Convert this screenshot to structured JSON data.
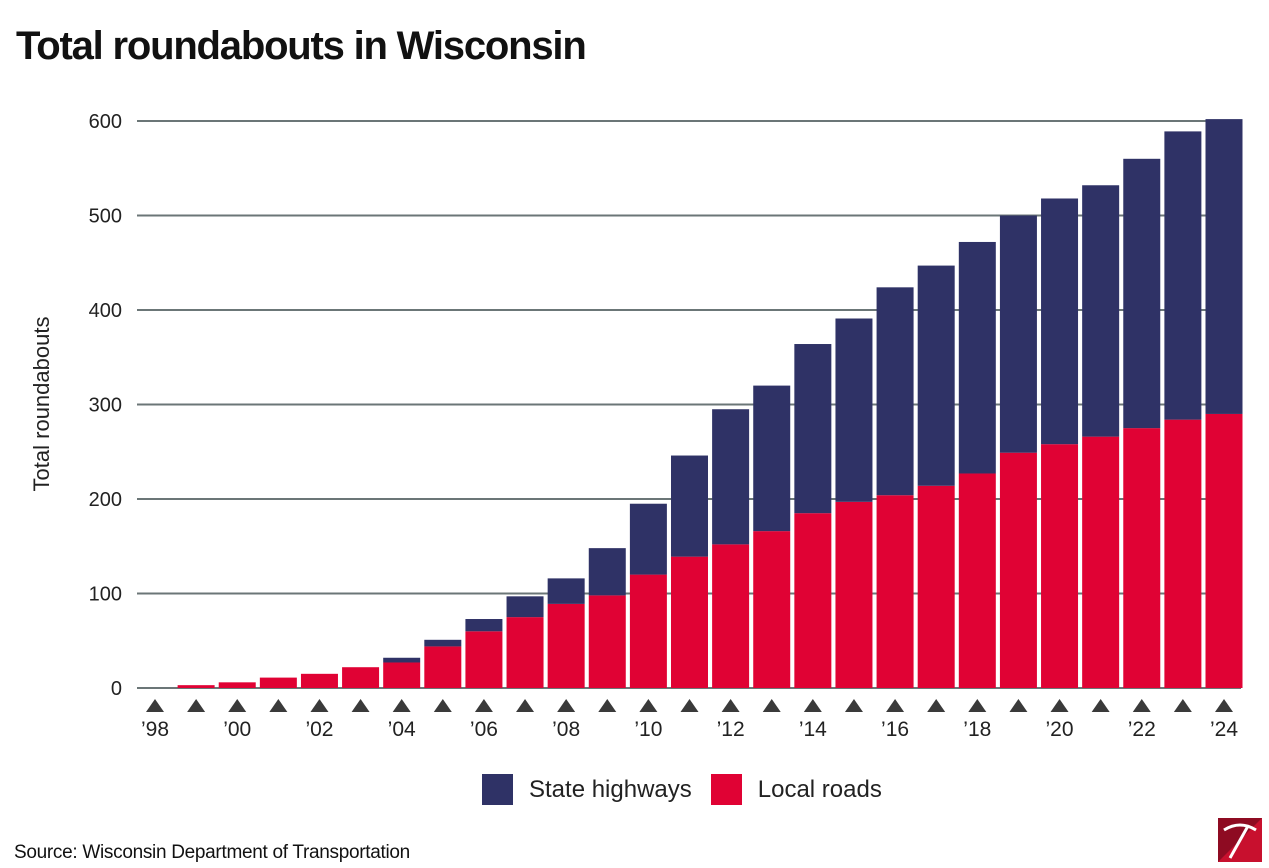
{
  "title": "Total roundabouts in Wisconsin",
  "source": "Source: Wisconsin Department of Transportation",
  "colors": {
    "state_highways": "#2f3266",
    "local_roads": "#e00234",
    "grid": "#6b7677",
    "marker": "#3a3a3a"
  },
  "chart_data": {
    "type": "bar",
    "stacked": true,
    "title": "Total roundabouts in Wisconsin",
    "xlabel": "",
    "ylabel": "Total roundabouts",
    "ylim": [
      0,
      600
    ],
    "yticks": [
      0,
      100,
      200,
      300,
      400,
      500,
      600
    ],
    "categories": [
      "1998",
      "1999",
      "2000",
      "2001",
      "2002",
      "2003",
      "2004",
      "2005",
      "2006",
      "2007",
      "2008",
      "2009",
      "2010",
      "2011",
      "2012",
      "2013",
      "2014",
      "2015",
      "2016",
      "2017",
      "2018",
      "2019",
      "2020",
      "2021",
      "2022",
      "2023",
      "2024"
    ],
    "xtick_labels": [
      "’98",
      "",
      "’00",
      "",
      "’02",
      "",
      "’04",
      "",
      "’06",
      "",
      "’08",
      "",
      "’10",
      "",
      "’12",
      "",
      "’14",
      "",
      "’16",
      "",
      "’18",
      "",
      "’20",
      "",
      "’22",
      "",
      "’24"
    ],
    "series": [
      {
        "name": "Local roads",
        "values": [
          0,
          3,
          6,
          11,
          15,
          22,
          27,
          44,
          60,
          75,
          89,
          98,
          120,
          139,
          152,
          166,
          185,
          197,
          204,
          214,
          227,
          249,
          258,
          266,
          275,
          284,
          290
        ]
      },
      {
        "name": "State highways",
        "values": [
          0,
          0,
          0,
          0,
          0,
          0,
          5,
          7,
          13,
          22,
          27,
          50,
          75,
          107,
          143,
          154,
          179,
          194,
          220,
          233,
          245,
          251,
          260,
          266,
          285,
          305,
          312
        ]
      }
    ],
    "grid": true,
    "legend_position": "bottom-center"
  },
  "legend": [
    {
      "label": "State highways",
      "color": "#2f3266"
    },
    {
      "label": "Local roads",
      "color": "#e00234"
    }
  ],
  "logo_icon": "pickaxe-logo-icon"
}
